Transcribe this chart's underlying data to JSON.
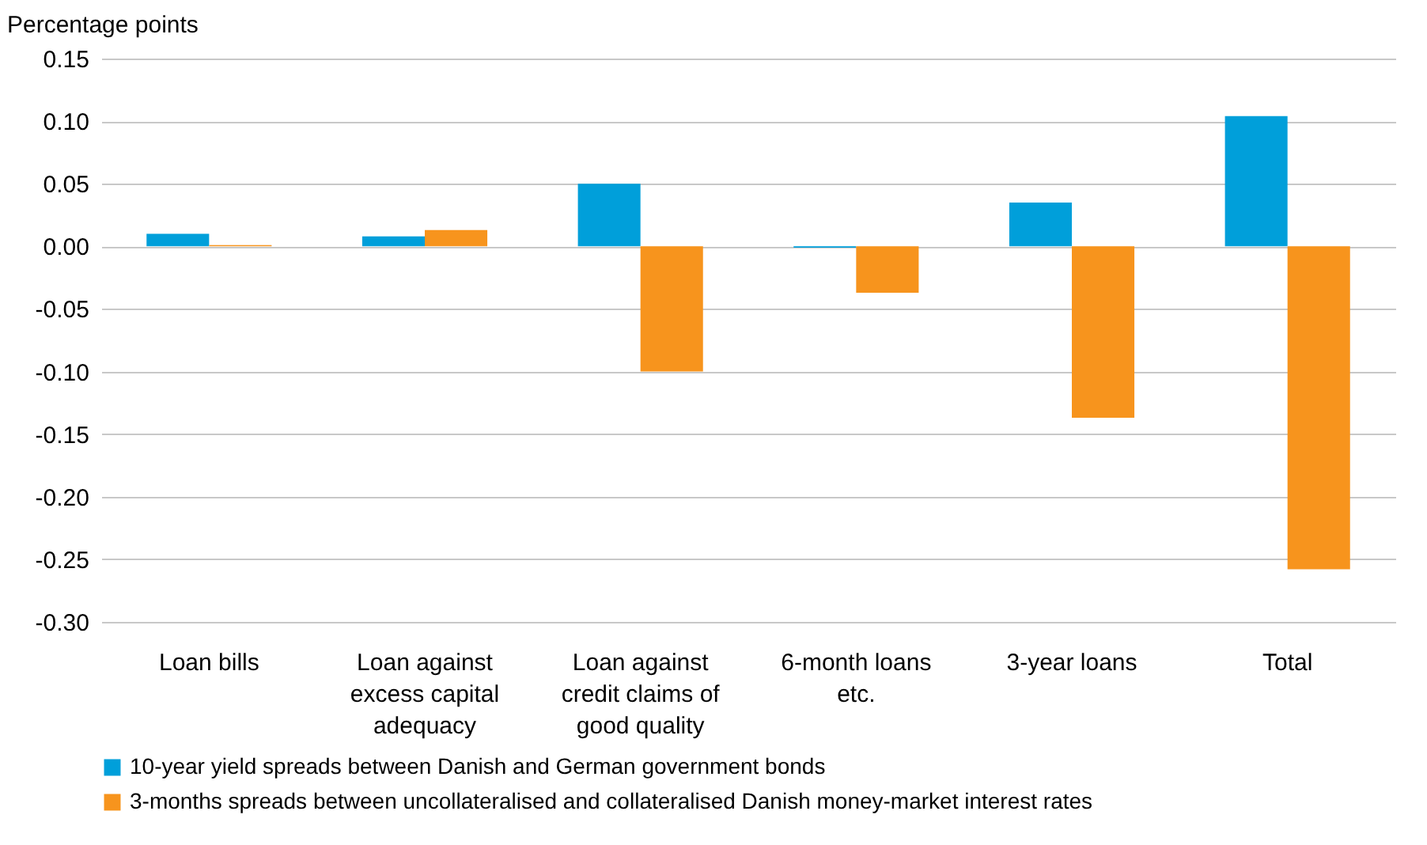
{
  "chart_data": {
    "type": "bar",
    "ylabel": "Percentage points",
    "categories": [
      "Loan bills",
      "Loan against excess capital adequacy",
      "Loan against credit claims of good quality",
      "6-month loans etc.",
      "3-year loans",
      "Total"
    ],
    "series": [
      {
        "name": "10-year yield spreads between Danish and German government bonds",
        "color": "#009fda",
        "values": [
          0.01,
          0.008,
          0.05,
          -0.001,
          0.035,
          0.104
        ]
      },
      {
        "name": "3-months spreads between uncollateralised and collateralised Danish money-market interest rates",
        "color": "#f7941d",
        "values": [
          0.001,
          0.013,
          -0.1,
          -0.037,
          -0.137,
          -0.258
        ]
      }
    ],
    "ylim": [
      -0.3,
      0.15
    ],
    "yticks": [
      {
        "value": -0.3,
        "label": "-0.30"
      },
      {
        "value": -0.25,
        "label": "-0.25"
      },
      {
        "value": -0.2,
        "label": "-0.20"
      },
      {
        "value": -0.15,
        "label": "-0.15"
      },
      {
        "value": -0.1,
        "label": "-0.10"
      },
      {
        "value": -0.05,
        "label": "-0.05"
      },
      {
        "value": 0,
        "label": "0.00"
      },
      {
        "value": 0.05,
        "label": "0.05"
      },
      {
        "value": 0.1,
        "label": "0.10"
      },
      {
        "value": 0.15,
        "label": "0.15"
      }
    ],
    "grid": "y",
    "legend": "bottom"
  }
}
